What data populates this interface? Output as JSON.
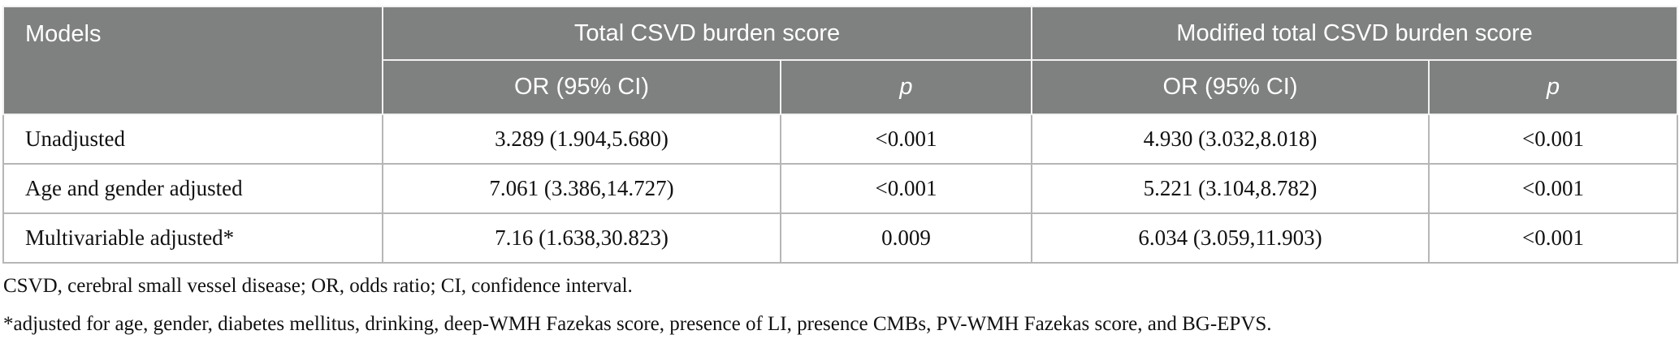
{
  "colors": {
    "header_bg": "#7f8080",
    "header_text": "#ffffff",
    "body_border": "#b6b6b6",
    "body_text": "#111111"
  },
  "table": {
    "header": {
      "models_label": "Models",
      "group1_label": "Total CSVD burden score",
      "group2_label": "Modified total CSVD burden score",
      "subheaders": [
        "OR (95% CI)",
        "p",
        "OR (95% CI)",
        "p"
      ]
    },
    "rows": [
      {
        "model": "Unadjusted",
        "or1": "3.289 (1.904,5.680)",
        "p1": "<0.001",
        "or2": "4.930 (3.032,8.018)",
        "p2": "<0.001"
      },
      {
        "model": "Age and gender adjusted",
        "or1": "7.061 (3.386,14.727)",
        "p1": "<0.001",
        "or2": "5.221 (3.104,8.782)",
        "p2": "<0.001"
      },
      {
        "model": "Multivariable adjusted*",
        "or1": "7.16 (1.638,30.823)",
        "p1": "0.009",
        "or2": "6.034 (3.059,11.903)",
        "p2": "<0.001"
      }
    ]
  },
  "footnotes": {
    "abbreviations": "CSVD, cerebral small vessel disease; OR, odds ratio; CI, confidence interval.",
    "adjustment": "*adjusted for age, gender, diabetes mellitus, drinking, deep-WMH Fazekas score, presence of LI, presence CMBs, PV-WMH Fazekas score, and BG-EPVS."
  }
}
